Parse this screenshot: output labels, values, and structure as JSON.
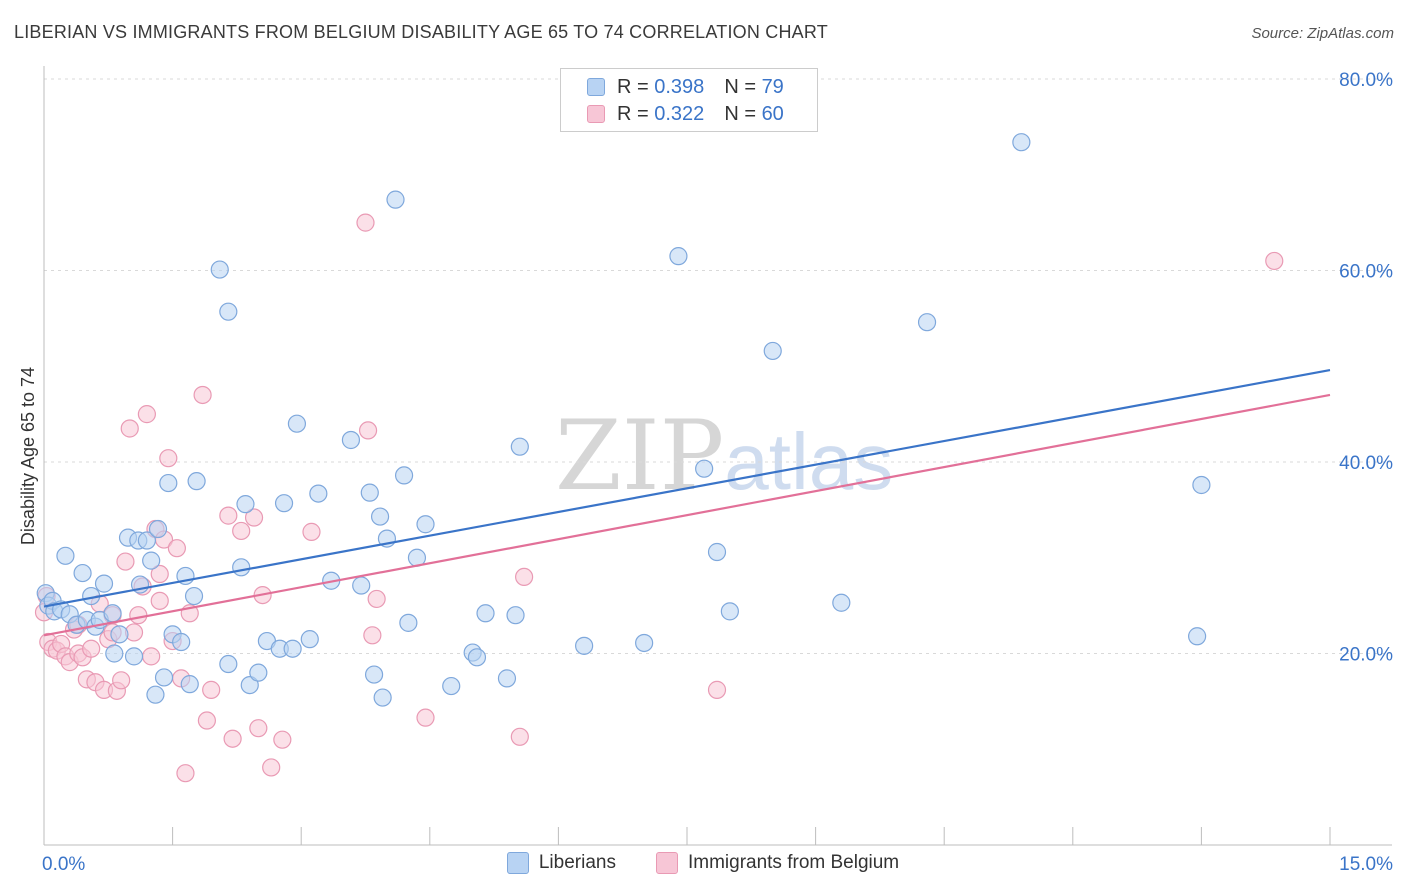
{
  "header": {
    "title": "LIBERIAN VS IMMIGRANTS FROM BELGIUM DISABILITY AGE 65 TO 74 CORRELATION CHART",
    "source": "Source: ZipAtlas.com"
  },
  "legend": {
    "series1": {
      "r_label": "R =",
      "r_value": "0.398",
      "n_label": "N =",
      "n_value": "79"
    },
    "series2": {
      "r_label": "R =",
      "r_value": "0.322",
      "n_label": "N =",
      "n_value": "60"
    }
  },
  "bottom_legend": {
    "series1": "Liberians",
    "series2": "Immigrants from Belgium"
  },
  "watermark": {
    "zip": "ZIP",
    "atlas": "atlas"
  },
  "colors": {
    "blue": "#3a74c8",
    "blue_fill": "#b8d3f3",
    "pink": "#e27098",
    "pink_fill": "#f7c6d6",
    "axis_text": "#3a74c8"
  },
  "chart_data": {
    "type": "scatter",
    "title": "LIBERIAN VS IMMIGRANTS FROM BELGIUM DISABILITY AGE 65 TO 74 CORRELATION CHART",
    "xlabel": "",
    "ylabel": "Disability Age 65 to 74",
    "xlim": [
      0,
      15
    ],
    "ylim": [
      0,
      80
    ],
    "x_tick_labels": [
      "0.0%",
      "15.0%"
    ],
    "y_ticks": [
      20,
      40,
      60,
      80
    ],
    "y_tick_labels": [
      "20.0%",
      "40.0%",
      "60.0%",
      "80.0%"
    ],
    "series": [
      {
        "name": "Liberians",
        "R": 0.398,
        "N": 79,
        "trend": {
          "x": [
            0,
            15
          ],
          "y": [
            24.9,
            49.6
          ]
        },
        "points": [
          [
            0.02,
            26.3
          ],
          [
            0.05,
            25.0
          ],
          [
            0.1,
            25.5
          ],
          [
            0.12,
            24.4
          ],
          [
            0.2,
            24.6
          ],
          [
            0.25,
            30.2
          ],
          [
            0.3,
            24.1
          ],
          [
            0.38,
            23.0
          ],
          [
            0.45,
            28.4
          ],
          [
            0.5,
            23.5
          ],
          [
            0.55,
            26.0
          ],
          [
            0.6,
            22.8
          ],
          [
            0.65,
            23.5
          ],
          [
            0.7,
            27.3
          ],
          [
            0.8,
            24.2
          ],
          [
            0.82,
            20.0
          ],
          [
            0.88,
            22.0
          ],
          [
            0.98,
            32.1
          ],
          [
            1.05,
            19.7
          ],
          [
            1.1,
            31.8
          ],
          [
            1.12,
            27.2
          ],
          [
            1.2,
            31.8
          ],
          [
            1.25,
            29.7
          ],
          [
            1.3,
            15.7
          ],
          [
            1.33,
            33.0
          ],
          [
            1.4,
            17.5
          ],
          [
            1.45,
            37.8
          ],
          [
            1.5,
            22.0
          ],
          [
            1.6,
            21.2
          ],
          [
            1.65,
            28.1
          ],
          [
            1.7,
            16.8
          ],
          [
            1.75,
            26.0
          ],
          [
            1.78,
            38.0
          ],
          [
            2.05,
            60.1
          ],
          [
            2.15,
            55.7
          ],
          [
            2.15,
            18.9
          ],
          [
            2.3,
            29.0
          ],
          [
            2.35,
            35.6
          ],
          [
            2.4,
            16.7
          ],
          [
            2.5,
            18.0
          ],
          [
            2.6,
            21.3
          ],
          [
            2.75,
            20.5
          ],
          [
            2.8,
            35.7
          ],
          [
            2.9,
            20.5
          ],
          [
            2.95,
            44.0
          ],
          [
            3.1,
            21.5
          ],
          [
            3.2,
            36.7
          ],
          [
            3.35,
            27.6
          ],
          [
            3.58,
            42.3
          ],
          [
            3.7,
            27.1
          ],
          [
            3.8,
            36.8
          ],
          [
            3.85,
            17.8
          ],
          [
            3.92,
            34.3
          ],
          [
            3.95,
            15.4
          ],
          [
            4.0,
            32.0
          ],
          [
            4.1,
            67.4
          ],
          [
            4.2,
            38.6
          ],
          [
            4.25,
            23.2
          ],
          [
            4.35,
            30.0
          ],
          [
            4.45,
            33.5
          ],
          [
            4.75,
            16.6
          ],
          [
            5.0,
            20.1
          ],
          [
            5.05,
            19.6
          ],
          [
            5.15,
            24.2
          ],
          [
            5.4,
            17.4
          ],
          [
            5.5,
            24.0
          ],
          [
            5.55,
            41.6
          ],
          [
            6.3,
            20.8
          ],
          [
            7.0,
            21.1
          ],
          [
            7.4,
            61.5
          ],
          [
            7.7,
            39.3
          ],
          [
            7.85,
            30.6
          ],
          [
            8.0,
            24.4
          ],
          [
            8.5,
            51.6
          ],
          [
            9.3,
            25.3
          ],
          [
            10.3,
            54.6
          ],
          [
            11.4,
            73.4
          ],
          [
            13.5,
            37.6
          ],
          [
            13.45,
            21.8
          ]
        ]
      },
      {
        "name": "Immigrants from Belgium",
        "R": 0.322,
        "N": 60,
        "trend": {
          "x": [
            0,
            15
          ],
          "y": [
            21.9,
            47.0
          ]
        },
        "points": [
          [
            0.03,
            26.0
          ],
          [
            0.05,
            21.2
          ],
          [
            0.1,
            20.5
          ],
          [
            0.15,
            20.3
          ],
          [
            0.2,
            21.0
          ],
          [
            0.25,
            19.7
          ],
          [
            0.3,
            19.1
          ],
          [
            0.35,
            22.5
          ],
          [
            0.4,
            20.0
          ],
          [
            0.45,
            19.6
          ],
          [
            0.5,
            17.3
          ],
          [
            0.55,
            20.5
          ],
          [
            0.6,
            17.0
          ],
          [
            0.65,
            25.2
          ],
          [
            0.7,
            16.2
          ],
          [
            0.75,
            21.5
          ],
          [
            0.8,
            24.0
          ],
          [
            0.85,
            16.1
          ],
          [
            0.9,
            17.2
          ],
          [
            0.95,
            29.6
          ],
          [
            1.0,
            43.5
          ],
          [
            1.05,
            22.2
          ],
          [
            1.1,
            24.0
          ],
          [
            1.15,
            27.0
          ],
          [
            1.2,
            45.0
          ],
          [
            1.25,
            19.7
          ],
          [
            1.3,
            33.0
          ],
          [
            1.35,
            28.3
          ],
          [
            1.4,
            31.9
          ],
          [
            1.45,
            40.4
          ],
          [
            1.5,
            21.3
          ],
          [
            1.55,
            31.0
          ],
          [
            1.6,
            17.4
          ],
          [
            1.65,
            7.5
          ],
          [
            1.7,
            24.2
          ],
          [
            1.85,
            47.0
          ],
          [
            1.9,
            13.0
          ],
          [
            1.95,
            16.2
          ],
          [
            2.15,
            34.4
          ],
          [
            2.2,
            11.1
          ],
          [
            2.3,
            32.8
          ],
          [
            2.45,
            34.2
          ],
          [
            2.5,
            12.2
          ],
          [
            2.55,
            26.1
          ],
          [
            2.65,
            8.1
          ],
          [
            2.78,
            11.0
          ],
          [
            3.12,
            32.7
          ],
          [
            3.75,
            65.0
          ],
          [
            3.78,
            43.3
          ],
          [
            3.83,
            21.9
          ],
          [
            3.88,
            25.7
          ],
          [
            4.45,
            13.3
          ],
          [
            5.55,
            11.3
          ],
          [
            5.6,
            28.0
          ],
          [
            7.85,
            16.2
          ],
          [
            14.35,
            61.0
          ],
          [
            0.0,
            24.3
          ],
          [
            0.4,
            23.0
          ],
          [
            0.8,
            22.2
          ],
          [
            1.35,
            25.5
          ]
        ]
      }
    ]
  }
}
